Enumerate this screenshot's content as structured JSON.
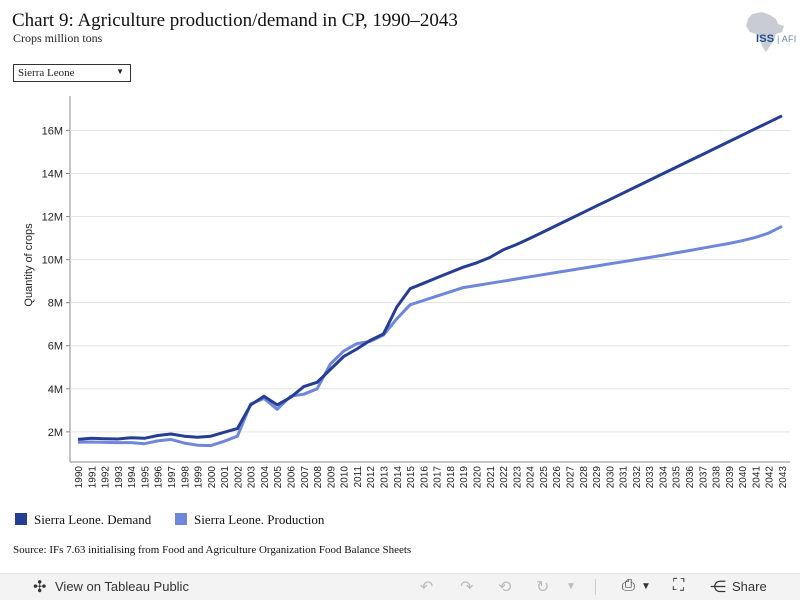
{
  "header": {
    "title": "Chart 9: Agriculture production/demand in CP, 1990–2043",
    "subtitle": "Crops million tons",
    "logo_text_a": "ISS",
    "logo_text_b": "AFI"
  },
  "filter": {
    "selected": "Sierra Leone"
  },
  "source": "Source: IFs 7.63 initialising from Food and Agriculture Organization Food Balance Sheets",
  "footer": {
    "view_label": "View on Tableau Public",
    "share_label": "Share"
  },
  "colors": {
    "demand": "#253d93",
    "production": "#6f87db",
    "grid": "#e3e3e3",
    "axis": "#888888"
  },
  "chart_data": {
    "type": "line",
    "title": "Chart 9: Agriculture production/demand in CP, 1990–2043",
    "ylabel": "Quantity of crops",
    "xlabel": "",
    "ylim": [
      600000,
      17600000
    ],
    "yticks": [
      2000000,
      4000000,
      6000000,
      8000000,
      10000000,
      12000000,
      14000000,
      16000000
    ],
    "ytick_labels": [
      "2M",
      "4M",
      "6M",
      "8M",
      "10M",
      "12M",
      "14M",
      "16M"
    ],
    "grid": true,
    "legend": "bottom-left",
    "x": [
      1990,
      1991,
      1992,
      1993,
      1994,
      1995,
      1996,
      1997,
      1998,
      1999,
      2000,
      2001,
      2002,
      2003,
      2004,
      2005,
      2006,
      2007,
      2008,
      2009,
      2010,
      2011,
      2012,
      2013,
      2014,
      2015,
      2016,
      2017,
      2018,
      2019,
      2020,
      2021,
      2022,
      2023,
      2024,
      2025,
      2026,
      2027,
      2028,
      2029,
      2030,
      2031,
      2032,
      2033,
      2034,
      2035,
      2036,
      2037,
      2038,
      2039,
      2040,
      2041,
      2042,
      2043
    ],
    "series": [
      {
        "name": "Sierra Leone. Demand",
        "values": [
          1650000,
          1700000,
          1680000,
          1670000,
          1730000,
          1700000,
          1830000,
          1900000,
          1800000,
          1750000,
          1800000,
          1980000,
          2150000,
          3250000,
          3650000,
          3250000,
          3600000,
          4100000,
          4300000,
          4900000,
          5500000,
          5850000,
          6250000,
          6550000,
          7800000,
          8650000,
          8900000,
          9150000,
          9400000,
          9650000,
          9850000,
          10100000,
          10450000,
          10700000,
          10980000,
          11280000,
          11580000,
          11880000,
          12180000,
          12480000,
          12780000,
          13080000,
          13380000,
          13680000,
          13980000,
          14280000,
          14580000,
          14880000,
          15180000,
          15480000,
          15780000,
          16080000,
          16380000,
          16680000
        ]
      },
      {
        "name": "Sierra Leone. Production",
        "values": [
          1520000,
          1530000,
          1510000,
          1500000,
          1500000,
          1450000,
          1580000,
          1650000,
          1480000,
          1380000,
          1360000,
          1560000,
          1800000,
          3300000,
          3550000,
          3050000,
          3650000,
          3750000,
          4000000,
          5150000,
          5750000,
          6100000,
          6200000,
          6500000,
          7250000,
          7900000,
          8100000,
          8300000,
          8500000,
          8700000,
          8800000,
          8900000,
          9000000,
          9100000,
          9200000,
          9300000,
          9400000,
          9500000,
          9600000,
          9700000,
          9800000,
          9900000,
          10000000,
          10100000,
          10200000,
          10310000,
          10420000,
          10530000,
          10640000,
          10750000,
          10880000,
          11030000,
          11230000,
          11550000
        ]
      }
    ]
  }
}
